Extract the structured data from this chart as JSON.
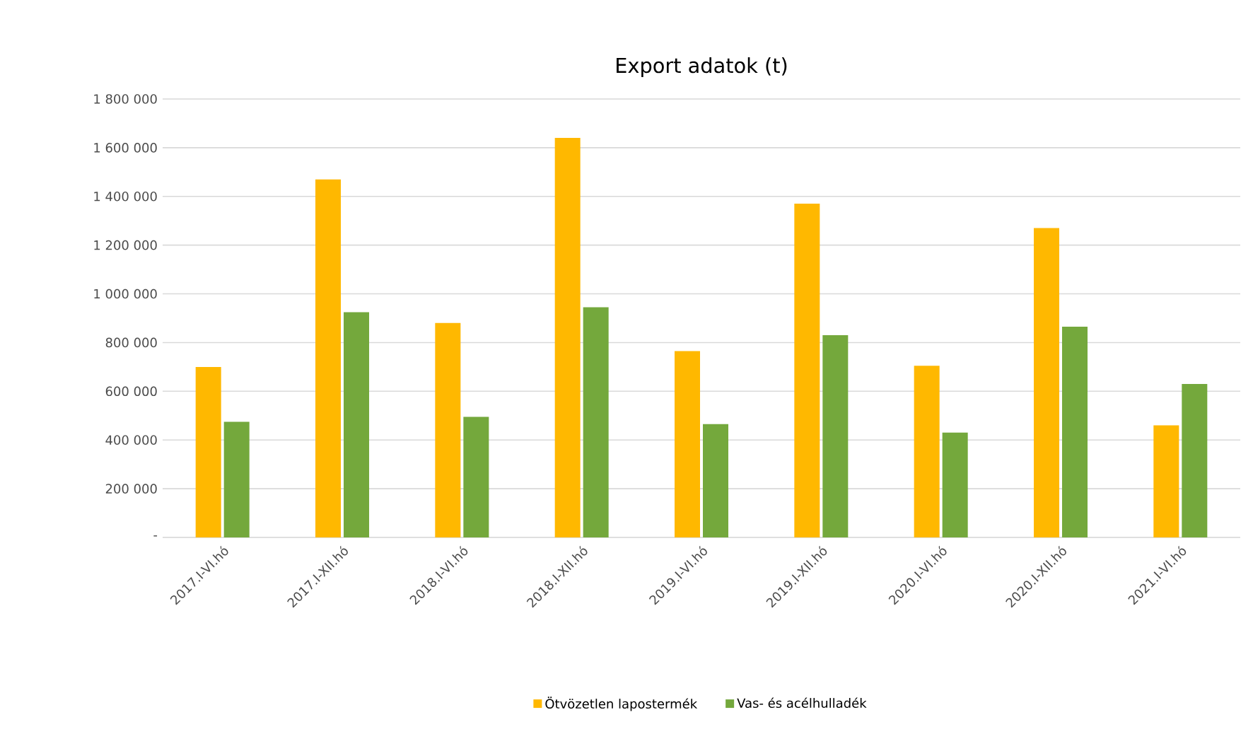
{
  "chart_data": {
    "type": "bar",
    "title": "Export adatok (t)",
    "categories": [
      "2017.I-VI.hó",
      "2017.I-XII.hó",
      "2018.I-VI.hó",
      "2018.I-XII.hó",
      "2019.I-VI.hó",
      "2019.I-XII.hó",
      "2020.I-VI.hó",
      "2020.I-XII.hó",
      "2021.I-VI.hó"
    ],
    "series": [
      {
        "name": "Ötvözetlen lapostermék",
        "color": "#ffb800",
        "values": [
          700000,
          1470000,
          880000,
          1640000,
          765000,
          1370000,
          705000,
          1270000,
          460000
        ]
      },
      {
        "name": "Vas- és acélhulladék",
        "color": "#74a83c",
        "values": [
          475000,
          925000,
          495000,
          945000,
          465000,
          830000,
          430000,
          865000,
          630000
        ]
      }
    ],
    "ylim": [
      0,
      1800000
    ],
    "yticks": [
      {
        "value": 0,
        "label": "-"
      },
      {
        "value": 200000,
        "label": "200 000"
      },
      {
        "value": 400000,
        "label": "400 000"
      },
      {
        "value": 600000,
        "label": "600 000"
      },
      {
        "value": 800000,
        "label": "800 000"
      },
      {
        "value": 1000000,
        "label": "1 000 000"
      },
      {
        "value": 1200000,
        "label": "1 200 000"
      },
      {
        "value": 1400000,
        "label": "1 400 000"
      },
      {
        "value": 1600000,
        "label": "1 600 000"
      },
      {
        "value": 1800000,
        "label": "1 800 000"
      }
    ],
    "grid": "y",
    "legend": "bottom"
  }
}
